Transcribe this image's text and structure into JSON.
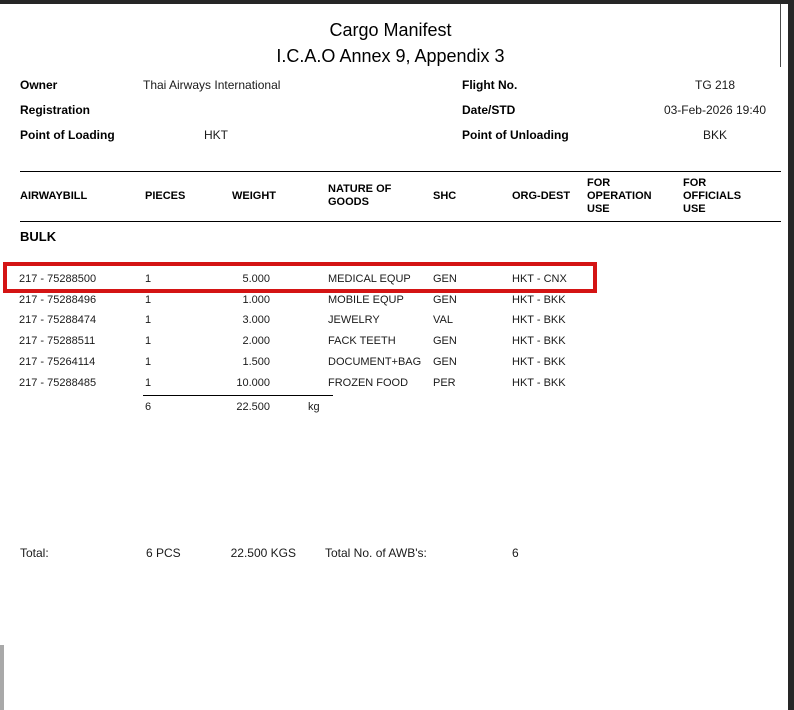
{
  "page": {
    "title": "Cargo Manifest",
    "subtitle": "I.C.A.O Annex 9, Appendix 3"
  },
  "info": {
    "left": [
      {
        "label": "Owner",
        "value": "Thai Airways International"
      },
      {
        "label": "Registration",
        "value": ""
      },
      {
        "label": "Point of Loading",
        "value": "HKT"
      }
    ],
    "right": [
      {
        "label": "Flight No.",
        "value": "TG 218"
      },
      {
        "label": "Date/STD",
        "value": "03-Feb-2026 19:40"
      },
      {
        "label": "Point of Unloading",
        "value": "BKK"
      }
    ]
  },
  "table": {
    "columns": [
      "AIRWAYBILL",
      "PIECES",
      "WEIGHT",
      "NATURE OF GOODS",
      "SHC",
      "ORG-DEST",
      "FOR OPERATION USE",
      "FOR OFFICIALS USE"
    ],
    "section_label": "BULK",
    "rows": [
      {
        "awb": "217 - 75288500",
        "pieces": "1",
        "weight": "5.000",
        "nature": "MEDICAL EQUP",
        "shc": "GEN",
        "org_dest": "HKT - CNX",
        "highlighted": true
      },
      {
        "awb": "217 - 75288496",
        "pieces": "1",
        "weight": "1.000",
        "nature": "MOBILE EQUP",
        "shc": "GEN",
        "org_dest": "HKT - BKK",
        "highlighted": false
      },
      {
        "awb": "217 - 75288474",
        "pieces": "1",
        "weight": "3.000",
        "nature": "JEWELRY",
        "shc": "VAL",
        "org_dest": "HKT - BKK",
        "highlighted": false
      },
      {
        "awb": "217 - 75288511",
        "pieces": "1",
        "weight": "2.000",
        "nature": "FACK TEETH",
        "shc": "GEN",
        "org_dest": "HKT - BKK",
        "highlighted": false
      },
      {
        "awb": "217 - 75264114",
        "pieces": "1",
        "weight": "1.500",
        "nature": "DOCUMENT+BAG",
        "shc": "GEN",
        "org_dest": "HKT - BKK",
        "highlighted": false
      },
      {
        "awb": "217 - 75288485",
        "pieces": "1",
        "weight": "10.000",
        "nature": "FROZEN FOOD",
        "shc": "PER",
        "org_dest": "HKT - BKK",
        "highlighted": false
      }
    ],
    "subtotal": {
      "pieces": "6",
      "weight": "22.500",
      "unit": "kg"
    }
  },
  "totals": {
    "label": "Total:",
    "pieces": "6 PCS",
    "weight": "22.500 KGS",
    "awb_count_label": "Total No. of AWB's:",
    "awb_count": "6"
  },
  "highlight_color": "#d41414"
}
